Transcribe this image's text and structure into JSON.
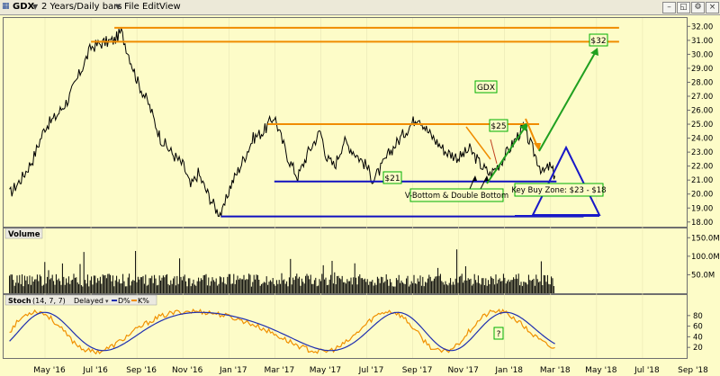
{
  "window": {
    "symbol": "GDX",
    "period": "2 Years/Daily bars",
    "menu": [
      "File",
      "Edit",
      "View"
    ]
  },
  "colors": {
    "background": "#fdfcc8",
    "price": "#000000",
    "support": "#1010c0",
    "resistance": "#f08c00",
    "projection_up": "#20a020",
    "projection_down": "#f08c00",
    "triangle": "#1818c8",
    "stoch_d": "#2030b0",
    "stoch_k": "#f09000",
    "label_border": "#00b000"
  },
  "chart_data": {
    "type": "line",
    "symbol": "GDX",
    "x_ticks": [
      "May '16",
      "Jul '16",
      "Sep '16",
      "Nov '16",
      "Jan '17",
      "Mar '17",
      "May '17",
      "Jul '17",
      "Sep '17",
      "Nov '17",
      "Jan '18",
      "Mar '18",
      "May '18",
      "Jul '18",
      "Sep '18"
    ],
    "price_panel": {
      "y_ticks": [
        "32.00",
        "31.00",
        "30.00",
        "29.00",
        "28.00",
        "27.00",
        "26.00",
        "25.00",
        "24.00",
        "23.00",
        "22.00",
        "21.00",
        "20.00",
        "19.00",
        "18.00"
      ],
      "ylim": [
        17.6,
        32.6
      ],
      "series": [
        {
          "type": "line",
          "x": [
            "2016-03-15",
            "2016-04-01",
            "2016-04-15",
            "2016-05-01",
            "2016-05-15",
            "2016-06-01",
            "2016-06-15",
            "2016-07-01",
            "2016-07-15",
            "2016-08-01",
            "2016-08-10",
            "2016-08-20",
            "2016-09-01",
            "2016-09-15",
            "2016-10-01",
            "2016-10-15",
            "2016-11-01",
            "2016-11-10",
            "2016-11-20",
            "2016-12-01",
            "2016-12-15",
            "2016-12-22",
            "2017-01-01",
            "2017-01-15",
            "2017-02-01",
            "2017-02-15",
            "2017-03-01",
            "2017-03-10",
            "2017-03-20",
            "2017-04-01",
            "2017-04-15",
            "2017-05-01",
            "2017-05-10",
            "2017-05-20",
            "2017-06-01",
            "2017-06-15",
            "2017-07-01",
            "2017-07-10",
            "2017-07-20",
            "2017-08-01",
            "2017-08-15",
            "2017-09-01",
            "2017-09-08",
            "2017-09-20",
            "2017-10-01",
            "2017-10-15",
            "2017-11-01",
            "2017-11-15",
            "2017-12-01",
            "2017-12-12",
            "2017-12-25",
            "2018-01-10",
            "2018-01-25",
            "2018-02-08",
            "2018-02-20",
            "2018-03-01",
            "2018-03-08"
          ],
          "y": [
            20.0,
            21.2,
            22.5,
            24.8,
            25.5,
            26.8,
            28.5,
            30.5,
            30.8,
            31.0,
            31.6,
            30.0,
            28.0,
            26.5,
            24.0,
            23.0,
            22.0,
            20.5,
            21.5,
            20.2,
            18.8,
            18.6,
            20.5,
            22.0,
            24.0,
            24.5,
            25.6,
            24.0,
            22.5,
            21.2,
            23.0,
            24.5,
            22.5,
            22.0,
            23.8,
            23.0,
            22.0,
            21.0,
            21.8,
            23.0,
            24.0,
            25.2,
            25.6,
            24.5,
            23.8,
            23.0,
            22.6,
            23.2,
            22.0,
            21.4,
            22.2,
            23.5,
            24.8,
            23.0,
            21.5,
            22.0,
            21.3
          ]
        }
      ],
      "levels": [
        {
          "kind": "resistance",
          "price": 31.9,
          "from": "2016-08-01",
          "to": "2018-06-01"
        },
        {
          "kind": "resistance",
          "price": 30.9,
          "from": "2016-07-01",
          "to": "2018-06-01"
        },
        {
          "kind": "resistance",
          "price": 25.0,
          "from": "2017-02-20",
          "to": "2018-02-15"
        },
        {
          "kind": "support",
          "price": 20.9,
          "from": "2017-03-01",
          "to": "2018-03-10"
        },
        {
          "kind": "support",
          "price": 18.4,
          "from": "2016-12-20",
          "to": "2018-04-15"
        }
      ],
      "annotations": {
        "gdx_label": "GDX",
        "target_32": "$32",
        "target_25": "$25",
        "support_21": "$21",
        "bottom_note": "V-Bottom & Double Bottom",
        "buy_zone": "Key Buy Zone: $23 - $18"
      }
    },
    "volume_panel": {
      "label": "Volume",
      "y_ticks": [
        "150.0M",
        "100.0M",
        "50.0M"
      ],
      "ylim": [
        0,
        175
      ]
    },
    "stoch_panel": {
      "label": "Stoch",
      "params": "(14, 7, 7)",
      "mode": "Delayed",
      "legend": [
        "D%",
        "K%"
      ],
      "y_ticks": [
        "80",
        "60",
        "40",
        "20"
      ],
      "ylim": [
        0,
        100
      ],
      "marker": "?"
    }
  }
}
